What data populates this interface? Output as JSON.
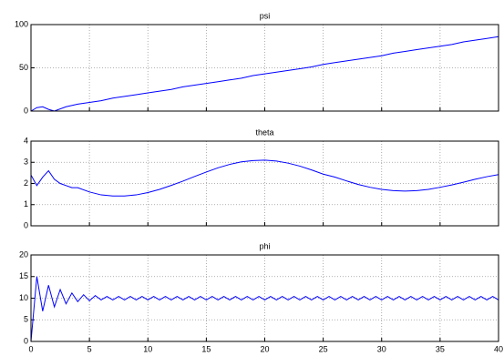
{
  "chart_data": [
    {
      "type": "line",
      "title": "psi",
      "color": "#0000ff",
      "grid": true,
      "xlim": [
        0,
        40
      ],
      "ylim": [
        0,
        100
      ],
      "yticks": [
        0,
        50,
        100
      ],
      "x": [
        0,
        0.5,
        1,
        1.5,
        2,
        3,
        4,
        5,
        6,
        7,
        8,
        9,
        10,
        11,
        12,
        13,
        14,
        15,
        16,
        17,
        18,
        19,
        20,
        21,
        22,
        23,
        24,
        25,
        26,
        27,
        28,
        29,
        30,
        31,
        32,
        33,
        34,
        35,
        36,
        37,
        38,
        39,
        40
      ],
      "values": [
        0,
        4,
        5,
        2,
        0,
        5,
        8,
        10,
        12,
        15,
        17,
        19,
        21,
        23,
        25,
        28,
        30,
        32,
        34,
        36,
        38,
        41,
        43,
        45,
        47,
        49,
        51,
        54,
        56,
        58,
        60,
        62,
        64,
        67,
        69,
        71,
        73,
        75,
        77,
        80,
        82,
        84,
        86
      ]
    },
    {
      "type": "line",
      "title": "theta",
      "color": "#0000ff",
      "grid": true,
      "xlim": [
        0,
        40
      ],
      "ylim": [
        0,
        4
      ],
      "yticks": [
        0,
        1,
        2,
        3,
        4
      ],
      "x": [
        0,
        0.5,
        1,
        1.5,
        2,
        2.5,
        3,
        3.5,
        4,
        5,
        6,
        7,
        8,
        9,
        10,
        11,
        12,
        13,
        14,
        15,
        16,
        17,
        18,
        19,
        20,
        21,
        22,
        23,
        24,
        25,
        26,
        27,
        28,
        29,
        30,
        31,
        32,
        33,
        34,
        35,
        36,
        37,
        38,
        39,
        40
      ],
      "values": [
        2.4,
        1.9,
        2.3,
        2.6,
        2.2,
        2.0,
        1.9,
        1.8,
        1.8,
        1.6,
        1.46,
        1.41,
        1.41,
        1.46,
        1.57,
        1.72,
        1.91,
        2.11,
        2.33,
        2.54,
        2.74,
        2.9,
        3.02,
        3.08,
        3.1,
        3.06,
        2.96,
        2.82,
        2.64,
        2.44,
        2.3,
        2.12,
        1.95,
        1.82,
        1.72,
        1.66,
        1.64,
        1.66,
        1.72,
        1.82,
        1.93,
        2.06,
        2.2,
        2.32,
        2.42
      ]
    },
    {
      "type": "line",
      "title": "phi",
      "color": "#0000ff",
      "grid": true,
      "xlim": [
        0,
        40
      ],
      "ylim": [
        0,
        20
      ],
      "yticks": [
        0,
        5,
        10,
        15,
        20
      ],
      "xticks": [
        0,
        5,
        10,
        15,
        20,
        25,
        30,
        35,
        40
      ],
      "x": [
        0,
        0.5,
        1,
        1.5,
        2,
        2.5,
        3,
        3.5,
        4,
        4.5,
        5,
        5.5,
        6,
        6.5,
        7,
        7.5,
        8,
        8.5,
        9,
        9.5,
        10,
        10.5,
        11,
        11.5,
        12,
        12.5,
        13,
        13.5,
        14,
        14.5,
        15,
        15.5,
        16,
        16.5,
        17,
        17.5,
        18,
        18.5,
        19,
        19.5,
        20,
        20.5,
        21,
        21.5,
        22,
        22.5,
        23,
        23.5,
        24,
        24.5,
        25,
        25.5,
        26,
        26.5,
        27,
        27.5,
        28,
        28.5,
        29,
        29.5,
        30,
        30.5,
        31,
        31.5,
        32,
        32.5,
        33,
        33.5,
        34,
        34.5,
        35,
        35.5,
        36,
        36.5,
        37,
        37.5,
        38,
        38.5,
        39,
        39.5,
        40
      ],
      "values": [
        0,
        15,
        7,
        13,
        8,
        12,
        8.7,
        11.2,
        9.2,
        10.8,
        9.4,
        10.6,
        9.6,
        10.4,
        9.6,
        10.4,
        9.6,
        10.4,
        9.6,
        10.4,
        9.6,
        10.4,
        9.6,
        10.4,
        9.6,
        10.4,
        9.6,
        10.4,
        9.6,
        10.4,
        9.6,
        10.4,
        9.6,
        10.4,
        9.6,
        10.4,
        9.6,
        10.4,
        9.6,
        10.4,
        9.6,
        10.4,
        9.6,
        10.4,
        9.6,
        10.4,
        9.6,
        10.4,
        9.6,
        10.4,
        9.6,
        10.4,
        9.6,
        10.4,
        9.6,
        10.4,
        9.6,
        10.4,
        9.6,
        10.4,
        9.6,
        10.4,
        9.6,
        10.4,
        9.6,
        10.4,
        9.6,
        10.4,
        9.6,
        10.4,
        9.6,
        10.4,
        9.6,
        10.4,
        9.6,
        10.4,
        9.6,
        10.4,
        9.6,
        10.4,
        9.6
      ]
    }
  ]
}
